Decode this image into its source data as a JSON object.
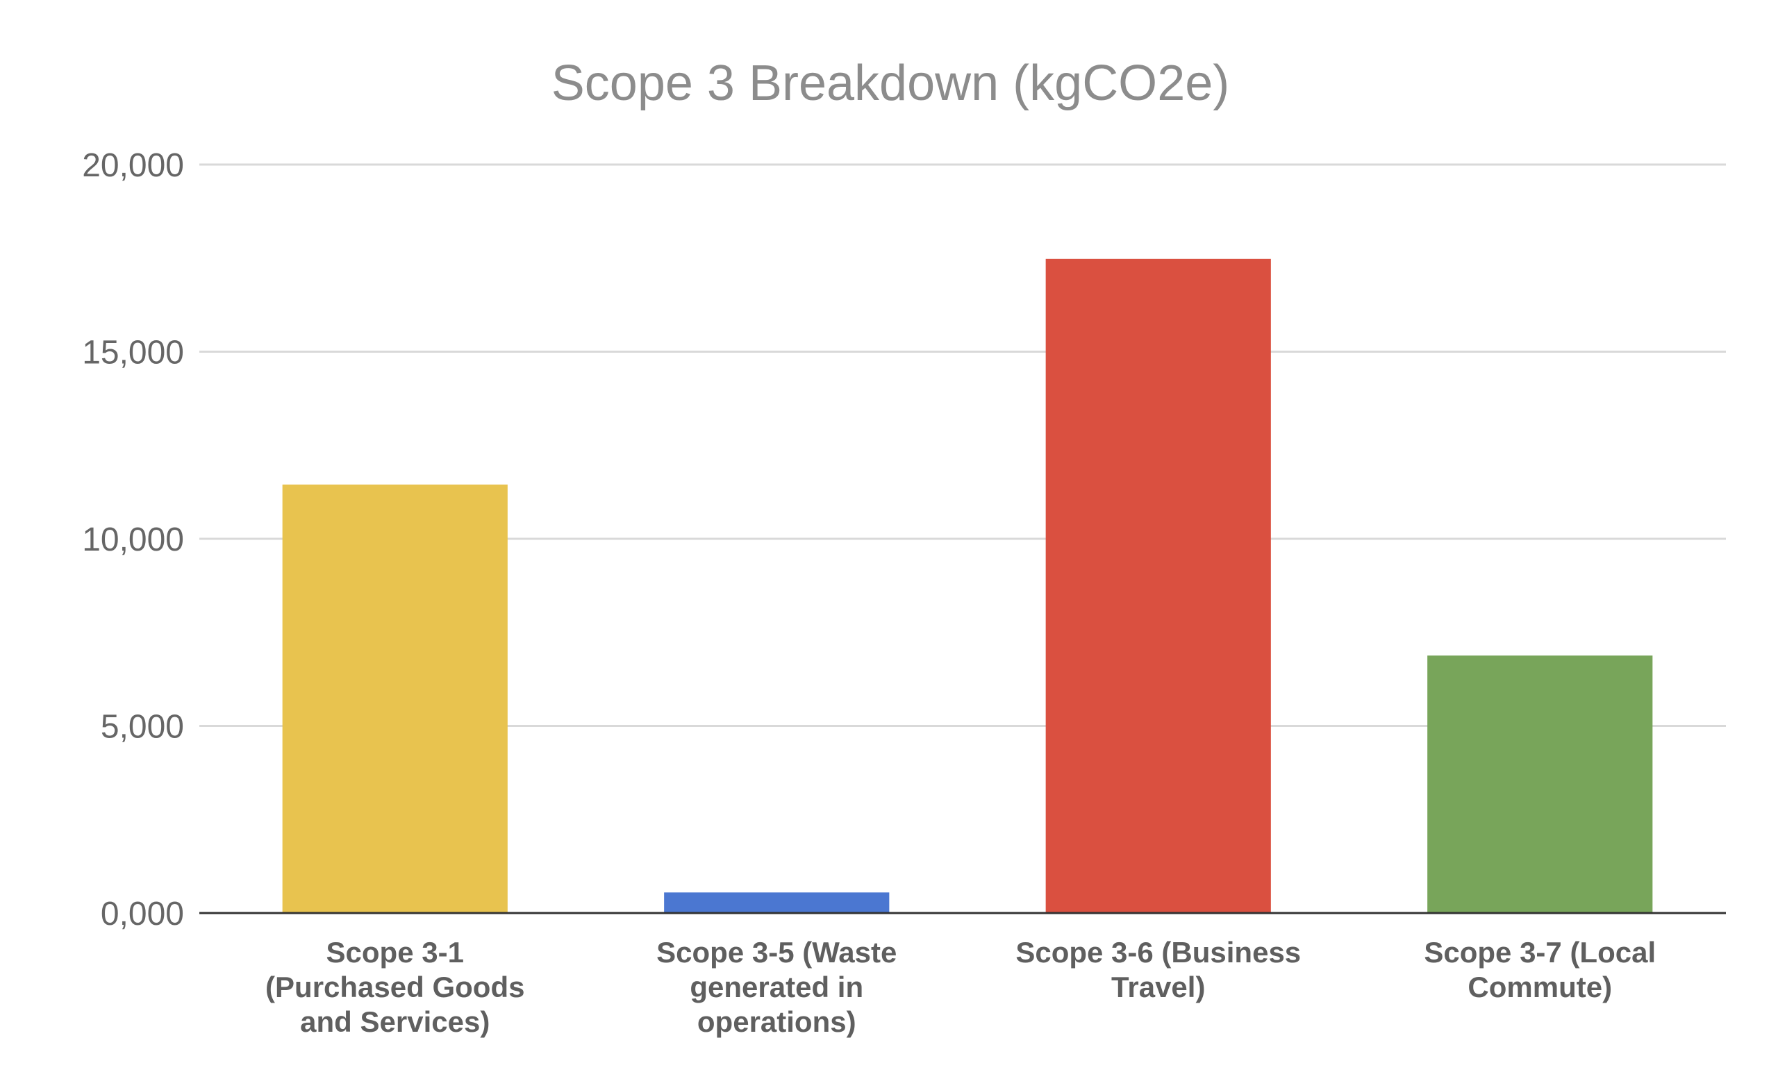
{
  "chart_data": {
    "type": "bar",
    "title": "Scope 3 Breakdown (kgCO2e)",
    "xlabel": "",
    "ylabel": "",
    "ylim": [
      0,
      20000
    ],
    "yticks": [
      0,
      5000,
      10000,
      15000,
      20000
    ],
    "ytick_labels": [
      "0,000",
      "5,000",
      "10,000",
      "15,000",
      "20,000"
    ],
    "grid": true,
    "legend": "none",
    "categories": [
      [
        "Scope 3-1",
        "(Purchased Goods",
        "and Services)"
      ],
      [
        "Scope 3-5 (Waste",
        "generated in",
        "operations)"
      ],
      [
        "Scope 3-6 (Business",
        "Travel)"
      ],
      [
        "Scope 3-7 (Local",
        "Commute)"
      ]
    ],
    "values": [
      11450,
      550,
      17480,
      6880
    ],
    "colors": [
      "#E8C34F",
      "#4B77D1",
      "#DA5040",
      "#78A55A"
    ],
    "title_color": "#8C8C8C",
    "tick_label_color": "#666666",
    "category_label_color": "#5F5F5F",
    "grid_color": "#D9D9D9",
    "axis_color": "#333333"
  }
}
